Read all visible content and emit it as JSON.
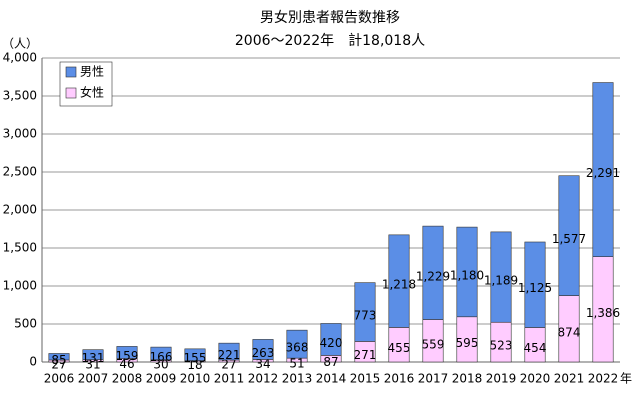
{
  "chart_data": {
    "type": "stacked_bar",
    "title": "男女別患者報告数推移",
    "subtitle": "2006～2022年　計18,018人",
    "y_label": "（人）",
    "x_label": "年",
    "categories": [
      "2006",
      "2007",
      "2008",
      "2009",
      "2010",
      "2011",
      "2012",
      "2013",
      "2014",
      "2015",
      "2016",
      "2017",
      "2018",
      "2019",
      "2020",
      "2021",
      "2022"
    ],
    "series": [
      {
        "name": "女性",
        "color": "#ffccff",
        "values": [
          27,
          31,
          46,
          30,
          18,
          27,
          34,
          51,
          87,
          271,
          455,
          559,
          595,
          523,
          454,
          874,
          1386
        ],
        "value_labels": [
          "27",
          "31",
          "46",
          "30",
          "18",
          "27",
          "34",
          "51",
          "87",
          "271",
          "455",
          "559",
          "595",
          "523",
          "454",
          "874",
          "1,386"
        ]
      },
      {
        "name": "男性",
        "color": "#5b8ee6",
        "values": [
          85,
          131,
          159,
          166,
          155,
          221,
          263,
          368,
          420,
          773,
          1218,
          1229,
          1180,
          1189,
          1125,
          1577,
          2291
        ],
        "value_labels": [
          "85",
          "131",
          "159",
          "166",
          "155",
          "221",
          "263",
          "368",
          "420",
          "773",
          "1,218",
          "1,229",
          "1,180",
          "1,189",
          "1,125",
          "1,577",
          "2,291"
        ]
      }
    ],
    "ylim": [
      0,
      4000
    ],
    "yticks": [
      0,
      500,
      {
        "value": 1000,
        "label": "1,000"
      },
      {
        "value": 1500,
        "label": "1,500"
      },
      {
        "value": 2000,
        "label": "2,000"
      },
      {
        "value": 2500,
        "label": "2,500"
      },
      {
        "value": 3000,
        "label": "3,000"
      },
      {
        "value": 3500,
        "label": "3,500"
      },
      {
        "value": 4000,
        "label": "4,000"
      }
    ],
    "grid": true,
    "legend_position": "top-left"
  }
}
